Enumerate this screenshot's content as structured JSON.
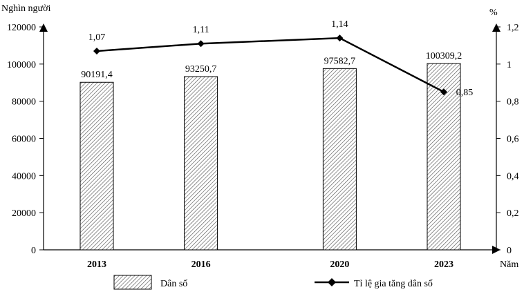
{
  "chart_data": {
    "type": "bar+line",
    "categories": [
      "2013",
      "2016",
      "2020",
      "2023"
    ],
    "x_positions": [
      2013,
      2016,
      2020,
      2023
    ],
    "xlabel": "Năm",
    "y_left": {
      "label": "Nghìn người",
      "lim": [
        0,
        120000
      ],
      "ticks": [
        "0",
        "20000",
        "40000",
        "60000",
        "80000",
        "100000",
        "120000"
      ]
    },
    "y_right": {
      "label": "%",
      "lim": [
        0,
        1.2
      ],
      "ticks": [
        "0",
        "0,2",
        "0,4",
        "0,6",
        "0,8",
        "1",
        "1,2"
      ]
    },
    "series": [
      {
        "name": "Dân số",
        "type": "bar",
        "axis": "left",
        "values": [
          90191.4,
          93250.7,
          97582.7,
          100309.2
        ],
        "labels": [
          "90191,4",
          "93250,7",
          "97582,7",
          "100309,2"
        ]
      },
      {
        "name": "Tỉ lệ gia tăng dân số",
        "type": "line",
        "axis": "right",
        "values": [
          1.07,
          1.11,
          1.14,
          0.85
        ],
        "labels": [
          "1,07",
          "1,11",
          "1,14",
          "0,85"
        ]
      }
    ],
    "legend": "bottom",
    "grid": false
  }
}
